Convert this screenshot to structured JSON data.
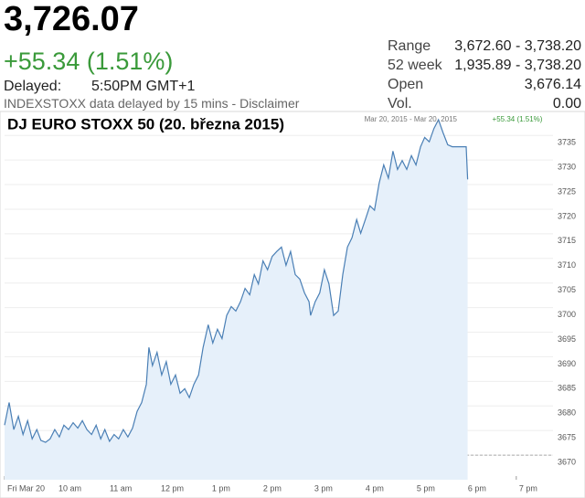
{
  "quote": {
    "price": "3,726.07",
    "change": "+55.34 (1.51%)",
    "delayed_label": "Delayed:",
    "delayed_time": "5:50PM GMT+1",
    "source_note": "INDEXSTOXX data delayed by 15 mins - Disclaimer",
    "stats": [
      {
        "label": "Range",
        "value": "3,672.60 - 3,738.20"
      },
      {
        "label": "52 week",
        "value": "1,935.89 - 3,738.20"
      },
      {
        "label": "Open",
        "value": "3,676.14"
      },
      {
        "label": "Vol.",
        "value": "0.00"
      }
    ]
  },
  "chart_data": {
    "type": "line",
    "title": "DJ EURO STOXX 50 (20. března 2015)",
    "date_range": "Mar 20, 2015 - Mar 20, 2015",
    "change": "+55.34 (1.51%)",
    "x": [
      9.0,
      9.09,
      9.18,
      9.27,
      9.36,
      9.45,
      9.54,
      9.63,
      9.71,
      9.8,
      9.89,
      9.98,
      10.07,
      10.16,
      10.25,
      10.34,
      10.43,
      10.52,
      10.61,
      10.7,
      10.79,
      10.88,
      10.96,
      11.05,
      11.14,
      11.23,
      11.32,
      11.41,
      11.5,
      11.59,
      11.68,
      11.77,
      11.82,
      11.89,
      11.98,
      12.07,
      12.16,
      12.25,
      12.34,
      12.43,
      12.52,
      12.61,
      12.7,
      12.79,
      12.88,
      12.98,
      13.07,
      13.16,
      13.25,
      13.34,
      13.43,
      13.52,
      13.61,
      13.7,
      13.79,
      13.88,
      13.96,
      14.05,
      14.14,
      14.23,
      14.32,
      14.41,
      14.5,
      14.59,
      14.68,
      14.77,
      14.86,
      14.95,
      14.98,
      15.07,
      15.16,
      15.25,
      15.34,
      15.43,
      15.52,
      15.61,
      15.7,
      15.79,
      15.88,
      15.96,
      16.05,
      16.14,
      16.23,
      16.32,
      16.41,
      16.5,
      16.59,
      16.68,
      16.77,
      16.86,
      16.95,
      17.04,
      17.13,
      17.21,
      17.3,
      17.39,
      17.48,
      17.57,
      17.66,
      17.75,
      17.84,
      17.93,
      18.02,
      18.05
    ],
    "series": [
      {
        "color": "#4a7fb5",
        "values": [
          3676.1,
          3680.7,
          3675.2,
          3677.9,
          3674.2,
          3677.0,
          3673.3,
          3675.2,
          3673.0,
          3672.6,
          3673.3,
          3675.2,
          3673.7,
          3676.1,
          3675.2,
          3676.6,
          3675.5,
          3677.0,
          3675.2,
          3674.2,
          3676.1,
          3673.3,
          3675.2,
          3672.8,
          3674.2,
          3673.3,
          3675.2,
          3673.7,
          3675.5,
          3678.9,
          3680.7,
          3684.4,
          3691.9,
          3688.2,
          3690.9,
          3686.3,
          3689.0,
          3684.4,
          3686.3,
          3682.6,
          3683.5,
          3681.7,
          3684.4,
          3686.3,
          3691.9,
          3696.5,
          3692.8,
          3695.6,
          3693.7,
          3698.4,
          3700.2,
          3699.3,
          3701.2,
          3703.9,
          3702.6,
          3706.7,
          3704.8,
          3709.5,
          3707.7,
          3710.4,
          3711.4,
          3712.3,
          3708.6,
          3711.4,
          3706.7,
          3705.8,
          3703.0,
          3701.2,
          3698.4,
          3701.2,
          3703.0,
          3707.7,
          3704.8,
          3698.4,
          3699.3,
          3706.7,
          3712.3,
          3714.2,
          3717.9,
          3715.1,
          3717.9,
          3720.7,
          3719.8,
          3725.3,
          3729.0,
          3726.3,
          3731.8,
          3728.1,
          3729.9,
          3728.1,
          3730.9,
          3729.0,
          3732.7,
          3734.6,
          3733.7,
          3736.4,
          3738.2,
          3735.5,
          3733.1,
          3732.7,
          3732.7,
          3732.7,
          3732.7,
          3726.07
        ]
      }
    ],
    "xlim": [
      9,
      19.95
    ],
    "xticks": [
      {
        "value": 9,
        "label": "Fri Mar 20"
      },
      {
        "value": 10,
        "label": "10 am"
      },
      {
        "value": 11,
        "label": "11 am"
      },
      {
        "value": 12,
        "label": "12 pm"
      },
      {
        "value": 13,
        "label": "1 pm"
      },
      {
        "value": 14,
        "label": "2 pm"
      },
      {
        "value": 15,
        "label": "3 pm"
      },
      {
        "value": 16,
        "label": "4 pm"
      },
      {
        "value": 17,
        "label": "5 pm"
      },
      {
        "value": 18,
        "label": "6 pm"
      },
      {
        "value": 19,
        "label": "7 pm"
      }
    ],
    "ylim": [
      3665,
      3739.5
    ],
    "yticks": [
      3670,
      3675,
      3680,
      3685,
      3690,
      3695,
      3700,
      3705,
      3710,
      3715,
      3720,
      3725,
      3730,
      3735
    ],
    "grid": true
  }
}
